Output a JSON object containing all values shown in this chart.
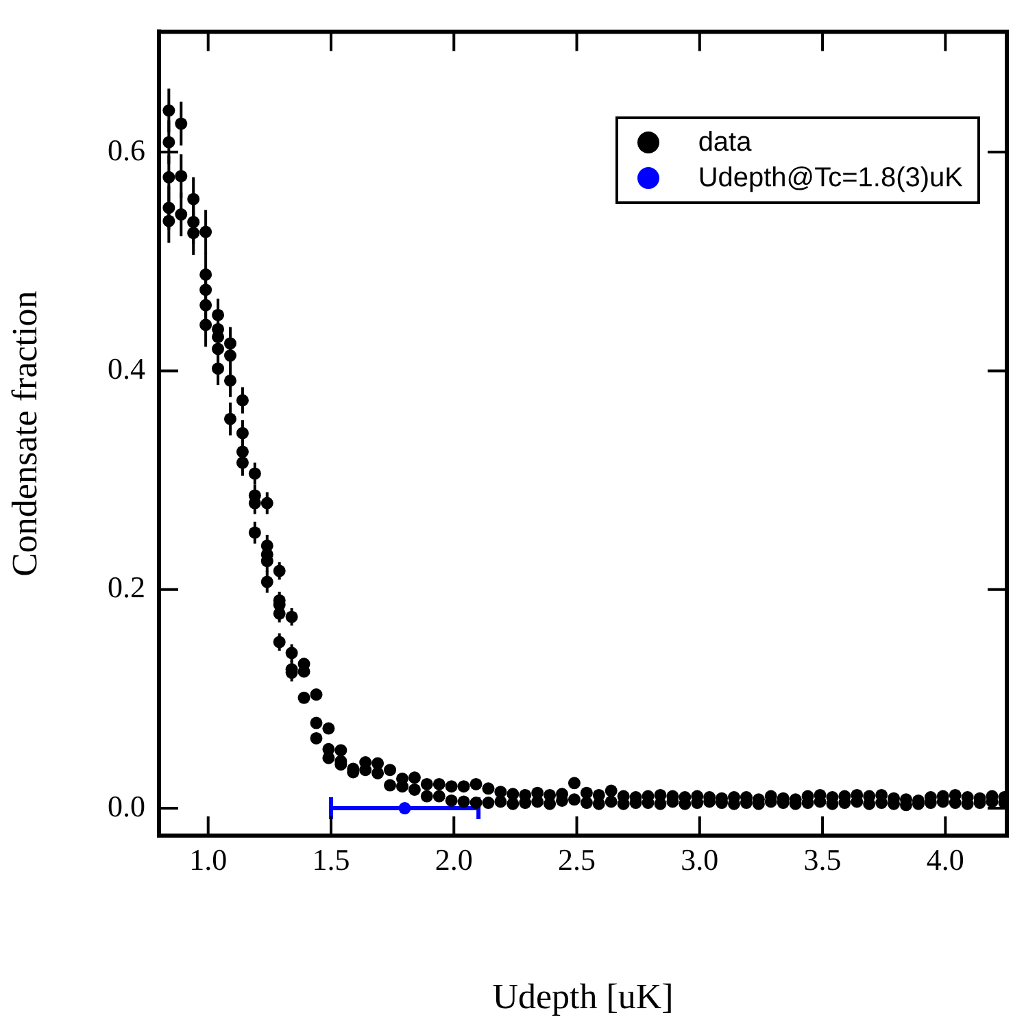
{
  "chart_data": {
    "type": "scatter",
    "xlabel": "Udepth [uK]",
    "ylabel": "Condensate fraction",
    "xlim": [
      0.8,
      4.25
    ],
    "ylim": [
      -0.025,
      0.71
    ],
    "xticks": [
      {
        "value": 1,
        "label": "1.0"
      },
      {
        "value": 1.5,
        "label": "1.5"
      },
      {
        "value": 2,
        "label": "2.0"
      },
      {
        "value": 2.5,
        "label": "2.5"
      },
      {
        "value": 3,
        "label": "3.0"
      },
      {
        "value": 3.5,
        "label": "3.5"
      },
      {
        "value": 4,
        "label": "4.0"
      }
    ],
    "yticks": [
      {
        "value": 0,
        "label": "0.0"
      },
      {
        "value": 0.2,
        "label": "0.2"
      },
      {
        "value": 0.4,
        "label": "0.4"
      },
      {
        "value": 0.6,
        "label": "0.6"
      }
    ],
    "grid": false,
    "legend": "top right",
    "marker": "circle",
    "series": [
      {
        "name": "data",
        "color": "#000000",
        "x": [
          0.84,
          0.84,
          0.84,
          0.84,
          0.84,
          0.89,
          0.89,
          0.89,
          0.94,
          0.94,
          0.94,
          0.99,
          0.99,
          0.99,
          0.99,
          0.99,
          1.04,
          1.04,
          1.04,
          1.04,
          1.04,
          1.09,
          1.09,
          1.09,
          1.09,
          1.14,
          1.14,
          1.14,
          1.14,
          1.19,
          1.19,
          1.19,
          1.19,
          1.24,
          1.24,
          1.24,
          1.24,
          1.24,
          1.29,
          1.29,
          1.29,
          1.29,
          1.29,
          1.34,
          1.34,
          1.34,
          1.34,
          1.39,
          1.39,
          1.39,
          1.44,
          1.44,
          1.44,
          1.49,
          1.49,
          1.49,
          1.54,
          1.54,
          1.54,
          1.59,
          1.59,
          1.64,
          1.64,
          1.69,
          1.69,
          1.74,
          1.74,
          1.79,
          1.79,
          1.84,
          1.84,
          1.89,
          1.89,
          1.94,
          1.94,
          1.99,
          1.99,
          2.04,
          2.04,
          2.09,
          2.09,
          2.14,
          2.14,
          2.19,
          2.19,
          2.24,
          2.24,
          2.29,
          2.29,
          2.34,
          2.34,
          2.39,
          2.39,
          2.44,
          2.44,
          2.49,
          2.49,
          2.54,
          2.54,
          2.59,
          2.59,
          2.64,
          2.64,
          2.69,
          2.69,
          2.74,
          2.74,
          2.79,
          2.79,
          2.84,
          2.84,
          2.89,
          2.89,
          2.94,
          2.94,
          2.99,
          2.99,
          3.04,
          3.04,
          3.09,
          3.09,
          3.14,
          3.14,
          3.19,
          3.19,
          3.24,
          3.24,
          3.29,
          3.29,
          3.34,
          3.34,
          3.39,
          3.39,
          3.44,
          3.44,
          3.49,
          3.49,
          3.54,
          3.54,
          3.59,
          3.59,
          3.64,
          3.64,
          3.69,
          3.69,
          3.74,
          3.74,
          3.79,
          3.79,
          3.84,
          3.84,
          3.89,
          3.89,
          3.94,
          3.94,
          3.99,
          3.99,
          4.04,
          4.04,
          4.09,
          4.09,
          4.14,
          4.14,
          4.19,
          4.19,
          4.24,
          4.24
        ],
        "values": [
          0.638,
          0.609,
          0.577,
          0.549,
          0.537,
          0.626,
          0.578,
          0.543,
          0.557,
          0.536,
          0.526,
          0.527,
          0.488,
          0.474,
          0.46,
          0.442,
          0.451,
          0.438,
          0.431,
          0.42,
          0.402,
          0.425,
          0.414,
          0.391,
          0.356,
          0.373,
          0.343,
          0.326,
          0.316,
          0.306,
          0.286,
          0.279,
          0.252,
          0.279,
          0.24,
          0.232,
          0.226,
          0.207,
          0.217,
          0.19,
          0.186,
          0.178,
          0.152,
          0.175,
          0.142,
          0.127,
          0.124,
          0.132,
          0.125,
          0.101,
          0.104,
          0.078,
          0.064,
          0.073,
          0.054,
          0.046,
          0.053,
          0.043,
          0.04,
          0.036,
          0.033,
          0.042,
          0.035,
          0.041,
          0.032,
          0.035,
          0.021,
          0.027,
          0.02,
          0.028,
          0.017,
          0.022,
          0.011,
          0.022,
          0.011,
          0.02,
          0.007,
          0.02,
          0.006,
          0.022,
          0.005,
          0.018,
          0.005,
          0.015,
          0.006,
          0.013,
          0.004,
          0.012,
          0.005,
          0.014,
          0.006,
          0.012,
          0.004,
          0.013,
          0.007,
          0.023,
          0.008,
          0.014,
          0.005,
          0.012,
          0.004,
          0.016,
          0.006,
          0.011,
          0.004,
          0.01,
          0.005,
          0.011,
          0.005,
          0.012,
          0.004,
          0.011,
          0.006,
          0.01,
          0.004,
          0.011,
          0.005,
          0.01,
          0.006,
          0.009,
          0.005,
          0.01,
          0.004,
          0.01,
          0.005,
          0.008,
          0.004,
          0.011,
          0.006,
          0.009,
          0.005,
          0.008,
          0.004,
          0.011,
          0.005,
          0.012,
          0.006,
          0.01,
          0.004,
          0.011,
          0.005,
          0.012,
          0.006,
          0.011,
          0.004,
          0.012,
          0.005,
          0.009,
          0.004,
          0.008,
          0.003,
          0.007,
          0.004,
          0.01,
          0.005,
          0.011,
          0.006,
          0.012,
          0.005,
          0.01,
          0.004,
          0.009,
          0.005,
          0.011,
          0.006,
          0.01,
          0.005
        ],
        "errors": [
          0.02,
          0.02,
          0.02,
          0.02,
          0.02,
          0.02,
          0.02,
          0.02,
          0.02,
          0.02,
          0.02,
          0.02,
          0.02,
          0.02,
          0.02,
          0.02,
          0.015,
          0.015,
          0.015,
          0.015,
          0.015,
          0.015,
          0.015,
          0.015,
          0.015,
          0.012,
          0.012,
          0.012,
          0.012,
          0.01,
          0.01,
          0.01,
          0.01,
          0.01,
          0.01,
          0.01,
          0.01,
          0.01,
          0.008,
          0.008,
          0.008,
          0.008,
          0.008,
          0.008,
          0.008,
          0.008,
          0.008,
          null,
          null,
          null,
          null,
          null,
          null,
          null,
          null,
          null,
          null,
          null,
          null,
          null,
          null,
          null,
          null,
          null,
          null,
          null,
          null,
          null,
          null,
          null,
          null,
          null,
          null,
          null,
          null,
          null,
          null,
          null,
          null,
          null,
          null,
          null,
          null,
          null,
          null,
          null,
          null,
          null,
          null,
          null,
          null,
          null,
          null,
          null,
          null,
          null,
          null,
          null,
          null,
          null,
          null,
          null,
          null,
          null,
          null,
          null,
          null,
          null,
          null,
          null,
          null,
          null,
          null,
          null,
          null,
          null,
          null,
          null,
          null,
          null,
          null,
          null,
          null,
          null,
          null,
          null,
          null,
          null,
          null,
          null,
          null,
          null,
          null,
          null,
          null,
          null,
          null,
          null,
          null,
          null,
          null,
          null,
          null,
          null,
          null,
          null,
          null,
          null,
          null,
          null,
          null,
          null,
          null,
          null,
          null,
          null,
          null,
          null,
          null,
          null,
          null,
          null,
          null,
          null,
          null,
          null,
          null
        ]
      },
      {
        "name": "Udepth@Tc=1.8(3)uK",
        "color": "#0000ff",
        "x": [
          1.8
        ],
        "values": [
          0
        ],
        "xerrors": [
          [
            1.5,
            2.1
          ]
        ]
      }
    ]
  }
}
